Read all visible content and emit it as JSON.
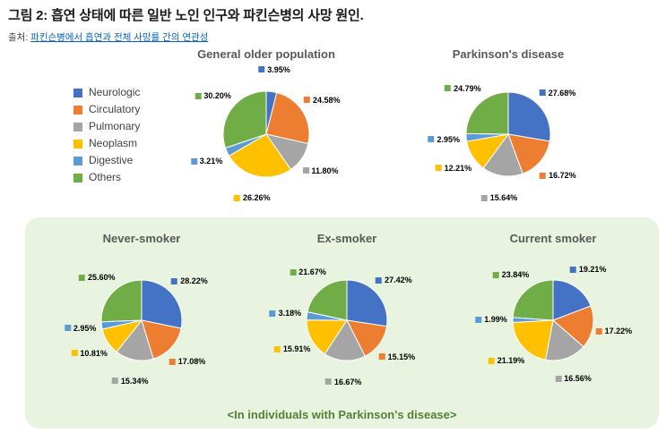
{
  "page": {
    "title": "그림 2: 흡연 상태에 따른 일반 노인 인구와 파킨슨병의 사망 원인.",
    "source_prefix": "출처:",
    "source_link": "파킨슨병에서 흡연과 전체 사망률 간의 연관성",
    "panel_caption": "<In individuals with Parkinson's disease>"
  },
  "colors": {
    "panel_bg": "#e8f3e0",
    "caption": "#538135",
    "link": "#0563c1"
  },
  "legend": [
    {
      "label": "Neurologic",
      "color": "#4472C4"
    },
    {
      "label": "Circulatory",
      "color": "#ED7D31"
    },
    {
      "label": "Pulmonary",
      "color": "#A5A5A5"
    },
    {
      "label": "Neoplasm",
      "color": "#FFC000"
    },
    {
      "label": "Digestive",
      "color": "#5B9BD5"
    },
    {
      "label": "Others",
      "color": "#70AD47"
    }
  ],
  "chart_data": [
    {
      "type": "pie",
      "title": "General older population",
      "categories": [
        "Neurologic",
        "Circulatory",
        "Pulmonary",
        "Neoplasm",
        "Digestive",
        "Others"
      ],
      "values": [
        3.95,
        24.58,
        11.8,
        26.26,
        3.21,
        30.2
      ],
      "labels": [
        "3.95%",
        "24.58%",
        "11.80%",
        "26.26%",
        "3.21%",
        "30.20%"
      ],
      "colors": [
        "#4472C4",
        "#ED7D31",
        "#A5A5A5",
        "#FFC000",
        "#5B9BD5",
        "#70AD47"
      ],
      "legend_position": "left",
      "start_angle_deg": 0,
      "direction": "clockwise"
    },
    {
      "type": "pie",
      "title": "Parkinson's disease",
      "categories": [
        "Neurologic",
        "Circulatory",
        "Pulmonary",
        "Neoplasm",
        "Digestive",
        "Others"
      ],
      "values": [
        27.68,
        16.72,
        15.64,
        12.21,
        2.95,
        24.79
      ],
      "labels": [
        "27.68%",
        "16.72%",
        "15.64%",
        "12.21%",
        "2.95%",
        "24.79%"
      ],
      "colors": [
        "#4472C4",
        "#ED7D31",
        "#A5A5A5",
        "#FFC000",
        "#5B9BD5",
        "#70AD47"
      ],
      "start_angle_deg": 0,
      "direction": "clockwise"
    },
    {
      "type": "pie",
      "title": "Never-smoker",
      "categories": [
        "Neurologic",
        "Circulatory",
        "Pulmonary",
        "Neoplasm",
        "Digestive",
        "Others"
      ],
      "values": [
        28.22,
        17.08,
        15.34,
        10.81,
        2.95,
        25.6
      ],
      "labels": [
        "28.22%",
        "17.08%",
        "15.34%",
        "10.81%",
        "2.95%",
        "25.60%"
      ],
      "colors": [
        "#4472C4",
        "#ED7D31",
        "#A5A5A5",
        "#FFC000",
        "#5B9BD5",
        "#70AD47"
      ],
      "start_angle_deg": 0,
      "direction": "clockwise"
    },
    {
      "type": "pie",
      "title": "Ex-smoker",
      "categories": [
        "Neurologic",
        "Circulatory",
        "Pulmonary",
        "Neoplasm",
        "Digestive",
        "Others"
      ],
      "values": [
        27.42,
        15.15,
        16.67,
        15.91,
        3.18,
        21.67
      ],
      "labels": [
        "27.42%",
        "15.15%",
        "16.67%",
        "15.91%",
        "3.18%",
        "21.67%"
      ],
      "colors": [
        "#4472C4",
        "#ED7D31",
        "#A5A5A5",
        "#FFC000",
        "#5B9BD5",
        "#70AD47"
      ],
      "start_angle_deg": 0,
      "direction": "clockwise"
    },
    {
      "type": "pie",
      "title": "Current smoker",
      "categories": [
        "Neurologic",
        "Circulatory",
        "Pulmonary",
        "Neoplasm",
        "Digestive",
        "Others"
      ],
      "values": [
        19.21,
        17.22,
        16.56,
        21.19,
        1.99,
        23.84
      ],
      "labels": [
        "19.21%",
        "17.22%",
        "16.56%",
        "21.19%",
        "1.99%",
        "23.84%"
      ],
      "colors": [
        "#4472C4",
        "#ED7D31",
        "#A5A5A5",
        "#FFC000",
        "#5B9BD5",
        "#70AD47"
      ],
      "start_angle_deg": 0,
      "direction": "clockwise"
    }
  ]
}
